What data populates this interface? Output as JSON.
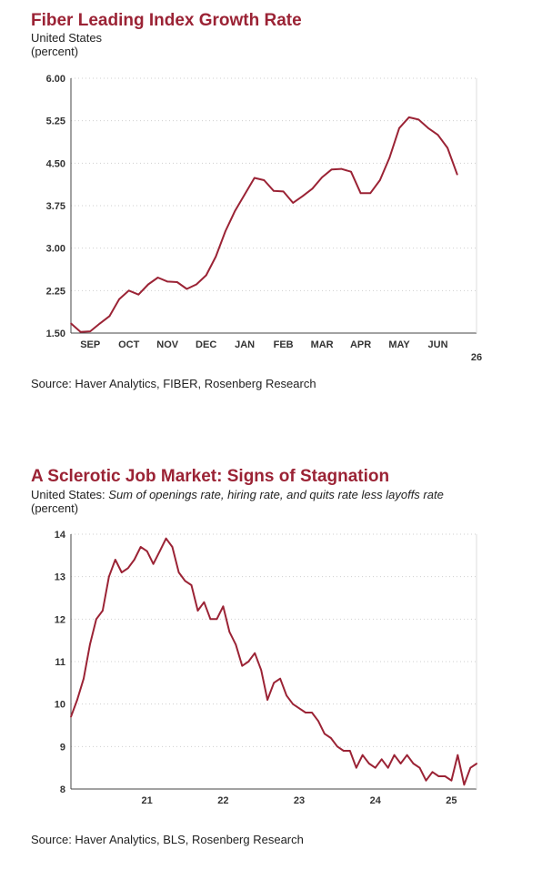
{
  "chart_data": [
    {
      "type": "line",
      "title": "Fiber Leading Index Growth Rate",
      "subtitle_lines": [
        "United States",
        "(percent)"
      ],
      "source": "Source: Haver Analytics, FIBER, Rosenberg Research",
      "ylim": [
        1.5,
        6.0
      ],
      "yticks": [
        "1.50",
        "2.25",
        "3.00",
        "3.75",
        "4.50",
        "5.25",
        "6.00"
      ],
      "ytick_values": [
        1.5,
        2.25,
        3.0,
        3.75,
        4.5,
        5.25,
        6.0
      ],
      "xlim": [
        0,
        10.5
      ],
      "xticks": [
        "SEP",
        "OCT",
        "NOV",
        "DEC",
        "JAN",
        "FEB",
        "MAR",
        "APR",
        "MAY",
        "JUN"
      ],
      "xtick_positions": [
        0.5,
        1.5,
        2.5,
        3.5,
        4.5,
        5.5,
        6.5,
        7.5,
        8.5,
        9.5
      ],
      "year_label": "26",
      "grid": true,
      "color": "#9b2335",
      "x": [
        0,
        0.25,
        0.5,
        0.75,
        1.0,
        1.25,
        1.5,
        1.75,
        2.0,
        2.25,
        2.5,
        2.75,
        3.0,
        3.25,
        3.5,
        3.75,
        4.0,
        4.25,
        4.5,
        4.75,
        5.0,
        5.25,
        5.5,
        5.75,
        6.0,
        6.25,
        6.5,
        6.75,
        7.0,
        7.25,
        7.5,
        7.75,
        8.0,
        8.25,
        8.5,
        8.75,
        9.0,
        9.25,
        9.5,
        9.75,
        10.0
      ],
      "values": [
        1.67,
        1.52,
        1.53,
        1.67,
        1.8,
        2.1,
        2.25,
        2.18,
        2.36,
        2.48,
        2.41,
        2.4,
        2.28,
        2.36,
        2.52,
        2.85,
        3.3,
        3.66,
        3.95,
        4.24,
        4.2,
        4.01,
        4.0,
        3.8,
        3.92,
        4.05,
        4.25,
        4.39,
        4.4,
        4.35,
        3.97,
        3.97,
        4.2,
        4.6,
        5.12,
        5.31,
        5.27,
        5.12,
        5.0,
        4.77,
        4.3
      ]
    },
    {
      "type": "line",
      "title": "A Sclerotic Job Market: Signs of Stagnation",
      "subtitle_prefix": "United States: ",
      "subtitle_italic": "Sum of openings rate, hiring rate, and quits rate less layoffs rate",
      "subtitle_unit": "(percent)",
      "source": "Source: Haver Analytics, BLS, Rosenberg Research",
      "ylim": [
        8,
        14
      ],
      "yticks": [
        "8",
        "9",
        "10",
        "11",
        "12",
        "13",
        "14"
      ],
      "ytick_values": [
        8,
        9,
        10,
        11,
        12,
        13,
        14
      ],
      "xlim": [
        2020.5,
        2025.83
      ],
      "xticks": [
        "21",
        "22",
        "23",
        "24",
        "25"
      ],
      "xtick_positions": [
        2021.5,
        2022.5,
        2023.5,
        2024.5,
        2025.5
      ],
      "grid": true,
      "color": "#9b2335",
      "x": [
        2020.5,
        2020.583,
        2020.667,
        2020.75,
        2020.833,
        2020.917,
        2021.0,
        2021.083,
        2021.167,
        2021.25,
        2021.333,
        2021.417,
        2021.5,
        2021.583,
        2021.667,
        2021.75,
        2021.833,
        2021.917,
        2022.0,
        2022.083,
        2022.167,
        2022.25,
        2022.333,
        2022.417,
        2022.5,
        2022.583,
        2022.667,
        2022.75,
        2022.833,
        2022.917,
        2023.0,
        2023.083,
        2023.167,
        2023.25,
        2023.333,
        2023.417,
        2023.5,
        2023.583,
        2023.667,
        2023.75,
        2023.833,
        2023.917,
        2024.0,
        2024.083,
        2024.167,
        2024.25,
        2024.333,
        2024.417,
        2024.5,
        2024.583,
        2024.667,
        2024.75,
        2024.833,
        2024.917,
        2025.0,
        2025.083,
        2025.167,
        2025.25,
        2025.333,
        2025.417,
        2025.5,
        2025.583,
        2025.667,
        2025.75,
        2025.833
      ],
      "values": [
        9.7,
        10.1,
        10.6,
        11.4,
        12.0,
        12.2,
        13.0,
        13.4,
        13.1,
        13.2,
        13.4,
        13.7,
        13.6,
        13.3,
        13.6,
        13.9,
        13.7,
        13.1,
        12.9,
        12.8,
        12.2,
        12.4,
        12.0,
        12.0,
        12.3,
        11.7,
        11.4,
        10.9,
        11.0,
        11.2,
        10.8,
        10.1,
        10.5,
        10.6,
        10.2,
        10.0,
        9.9,
        9.8,
        9.8,
        9.6,
        9.3,
        9.2,
        9.0,
        8.9,
        8.9,
        8.5,
        8.8,
        8.6,
        8.5,
        8.7,
        8.5,
        8.8,
        8.6,
        8.8,
        8.6,
        8.5,
        8.2,
        8.4,
        8.3,
        8.3,
        8.2,
        8.8,
        8.1,
        8.5,
        8.6
      ]
    }
  ]
}
